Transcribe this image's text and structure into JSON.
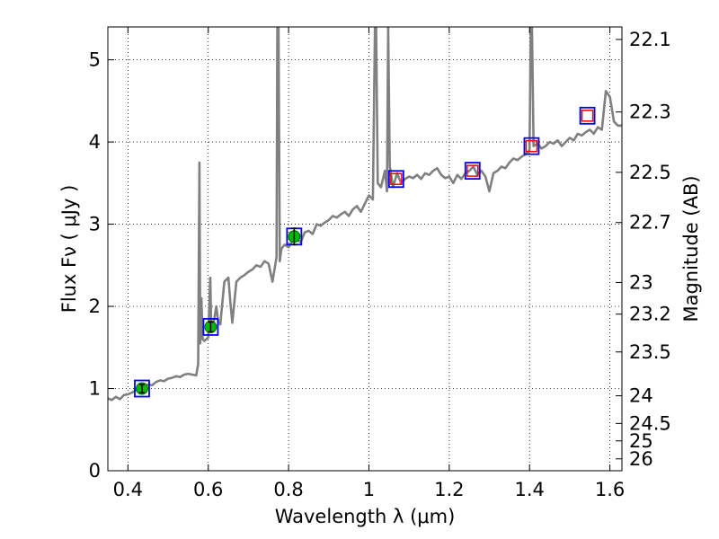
{
  "chart_data": {
    "type": "line",
    "xlabel": "Wavelength  λ (μm)",
    "ylabel": "Flux  Fν  ( μJy )",
    "y2label": "Magnitude (AB)",
    "xlim": [
      0.35,
      1.63
    ],
    "ylim": [
      0,
      5.4
    ],
    "grid": true,
    "x_ticks": [
      "0.4",
      "0.6",
      "0.8",
      "1",
      "1.2",
      "1.4",
      "1.6"
    ],
    "x_tick_values": [
      0.4,
      0.6,
      0.8,
      1.0,
      1.2,
      1.4,
      1.6
    ],
    "y_ticks": [
      "0",
      "1",
      "2",
      "3",
      "4",
      "5"
    ],
    "y_tick_values": [
      0,
      1,
      2,
      3,
      4,
      5
    ],
    "mag_ticks": [
      "22.1",
      "22.3",
      "22.5",
      "22.7",
      "23",
      "23.2",
      "23.5",
      "24",
      "24.5",
      "25",
      "26"
    ],
    "mag_tick_values": [
      22.1,
      22.3,
      22.5,
      22.7,
      23.0,
      23.2,
      23.5,
      24.0,
      24.5,
      25.0,
      26.0
    ],
    "spectrum": {
      "color": "#808080",
      "x": [
        0.35,
        0.36,
        0.37,
        0.38,
        0.39,
        0.4,
        0.41,
        0.42,
        0.43,
        0.44,
        0.45,
        0.46,
        0.47,
        0.48,
        0.49,
        0.5,
        0.51,
        0.52,
        0.53,
        0.54,
        0.55,
        0.56,
        0.57,
        0.575,
        0.578,
        0.58,
        0.583,
        0.586,
        0.59,
        0.6,
        0.605,
        0.607,
        0.61,
        0.62,
        0.625,
        0.63,
        0.64,
        0.65,
        0.655,
        0.66,
        0.67,
        0.68,
        0.69,
        0.7,
        0.71,
        0.72,
        0.73,
        0.74,
        0.75,
        0.76,
        0.77,
        0.772,
        0.775,
        0.778,
        0.782,
        0.79,
        0.8,
        0.81,
        0.82,
        0.83,
        0.84,
        0.85,
        0.86,
        0.87,
        0.88,
        0.89,
        0.9,
        0.91,
        0.92,
        0.93,
        0.94,
        0.95,
        0.96,
        0.97,
        0.98,
        0.99,
        1.0,
        1.01,
        1.015,
        1.018,
        1.022,
        1.03,
        1.04,
        1.045,
        1.048,
        1.052,
        1.06,
        1.07,
        1.08,
        1.09,
        1.1,
        1.11,
        1.12,
        1.13,
        1.14,
        1.15,
        1.16,
        1.17,
        1.18,
        1.19,
        1.2,
        1.21,
        1.22,
        1.23,
        1.24,
        1.25,
        1.26,
        1.27,
        1.28,
        1.29,
        1.3,
        1.31,
        1.32,
        1.33,
        1.34,
        1.35,
        1.36,
        1.37,
        1.38,
        1.39,
        1.4,
        1.403,
        1.406,
        1.41,
        1.42,
        1.43,
        1.44,
        1.45,
        1.46,
        1.47,
        1.48,
        1.49,
        1.5,
        1.51,
        1.52,
        1.53,
        1.54,
        1.55,
        1.56,
        1.57,
        1.58,
        1.59,
        1.6,
        1.61,
        1.62,
        1.63
      ],
      "y": [
        0.88,
        0.86,
        0.9,
        0.87,
        0.92,
        0.93,
        0.95,
        0.98,
        1.02,
        1.01,
        1.05,
        1.04,
        1.08,
        1.1,
        1.09,
        1.12,
        1.13,
        1.15,
        1.14,
        1.17,
        1.18,
        1.17,
        1.16,
        1.3,
        3.75,
        1.55,
        2.1,
        1.6,
        1.58,
        1.62,
        2.35,
        1.85,
        1.7,
        2.0,
        1.8,
        1.78,
        2.3,
        2.35,
        2.05,
        1.8,
        2.3,
        2.35,
        2.38,
        2.42,
        2.45,
        2.5,
        2.48,
        2.55,
        2.52,
        2.3,
        2.6,
        5.4,
        5.4,
        2.55,
        2.7,
        2.75,
        2.72,
        2.8,
        2.82,
        2.78,
        2.9,
        2.92,
        2.88,
        3.0,
        2.98,
        3.02,
        3.05,
        3.1,
        3.08,
        3.12,
        3.15,
        3.1,
        3.18,
        3.22,
        3.15,
        3.25,
        3.35,
        3.3,
        5.4,
        5.4,
        3.5,
        3.45,
        3.65,
        3.4,
        5.4,
        3.7,
        3.45,
        3.62,
        3.5,
        3.55,
        3.58,
        3.56,
        3.6,
        3.55,
        3.62,
        3.6,
        3.65,
        3.68,
        3.6,
        3.56,
        3.58,
        3.5,
        3.6,
        3.55,
        3.62,
        3.65,
        3.7,
        3.6,
        3.65,
        3.58,
        3.4,
        3.62,
        3.65,
        3.7,
        3.68,
        3.75,
        3.8,
        3.78,
        3.82,
        3.85,
        3.9,
        5.4,
        5.4,
        3.95,
        3.98,
        3.92,
        3.95,
        4.0,
        3.98,
        4.02,
        3.95,
        4.0,
        4.05,
        4.02,
        4.1,
        4.08,
        4.12,
        4.15,
        4.1,
        4.18,
        4.15,
        4.62,
        4.55,
        4.25,
        4.2,
        4.2
      ]
    },
    "photometry": [
      {
        "x": 0.435,
        "y": 1.0,
        "err": 0.05,
        "detected": true
      },
      {
        "x": 0.606,
        "y": 1.75,
        "err": 0.06,
        "detected": true
      },
      {
        "x": 0.814,
        "y": 2.85,
        "err": 0.1,
        "detected": true
      },
      {
        "x": 1.068,
        "y": 3.55,
        "detected": false
      },
      {
        "x": 1.258,
        "y": 3.65,
        "detected": false
      },
      {
        "x": 1.405,
        "y": 3.95,
        "detected": false
      },
      {
        "x": 1.544,
        "y": 4.32,
        "detected": false
      }
    ],
    "model_photometry": [
      {
        "x": 0.435,
        "y": 1.0
      },
      {
        "x": 0.606,
        "y": 1.75
      },
      {
        "x": 0.814,
        "y": 2.85
      },
      {
        "x": 1.068,
        "y": 3.55
      },
      {
        "x": 1.258,
        "y": 3.65
      },
      {
        "x": 1.405,
        "y": 3.95
      },
      {
        "x": 1.544,
        "y": 4.32
      }
    ],
    "colors": {
      "spectrum": "#808080",
      "model_box": "#0000ff",
      "detection_marker": "#00bb00",
      "upper_limit_marker": "#ff0000",
      "grid": "#000000"
    }
  }
}
